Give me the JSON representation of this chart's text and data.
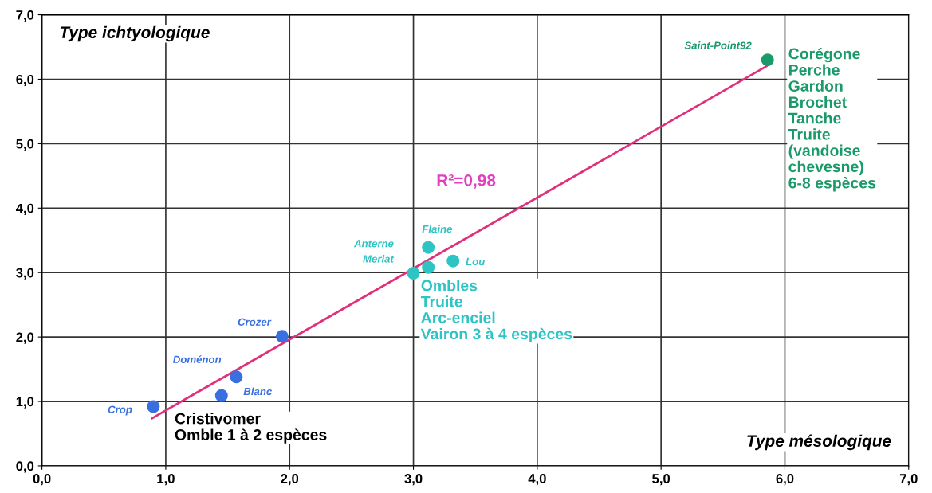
{
  "chart_data": {
    "type": "scatter",
    "xlabel": "Type mésologique",
    "ylabel": "Type ichtyologique",
    "xlim": [
      0,
      7
    ],
    "ylim": [
      0,
      7
    ],
    "xticks": [
      {
        "value": 0,
        "label": "0,0"
      },
      {
        "value": 1,
        "label": "1,0"
      },
      {
        "value": 2,
        "label": "2,0"
      },
      {
        "value": 3,
        "label": "3,0"
      },
      {
        "value": 4,
        "label": "4,0"
      },
      {
        "value": 5,
        "label": "5,0"
      },
      {
        "value": 6,
        "label": "6,0"
      },
      {
        "value": 7,
        "label": "7,0"
      }
    ],
    "yticks": [
      {
        "value": 0,
        "label": "0,0"
      },
      {
        "value": 1,
        "label": "1,0"
      },
      {
        "value": 2,
        "label": "2,0"
      },
      {
        "value": 3,
        "label": "3,0"
      },
      {
        "value": 4,
        "label": "4,0"
      },
      {
        "value": 5,
        "label": "5,0"
      },
      {
        "value": 6,
        "label": "6,0"
      },
      {
        "value": 7,
        "label": "7,0"
      }
    ],
    "grid": true,
    "series": [
      {
        "marker": "circle",
        "color": "#3a6fe0",
        "x": [
          0.9,
          1.45,
          1.57,
          1.94
        ],
        "values": [
          0.92,
          1.09,
          1.38,
          2.01
        ]
      },
      {
        "marker": "circle",
        "color": "#2ec4c4",
        "x": [
          3.0,
          3.12,
          3.12,
          3.32
        ],
        "values": [
          2.99,
          3.08,
          3.39,
          3.18
        ]
      },
      {
        "marker": "circle",
        "color": "#1a9a6a",
        "x": [
          5.86
        ],
        "values": [
          6.3
        ]
      },
      {
        "type": "line",
        "color": "#e0307a",
        "x": [
          0.89,
          5.85
        ],
        "values": [
          0.74,
          6.2
        ]
      }
    ],
    "annotations": [
      "Crop",
      "Blanc",
      "Doménon",
      "Crozer",
      "Anterne",
      "Merlat",
      "Flaine",
      "Lou",
      "Saint-Point92",
      "R²=0,98",
      "Cristivomer\nOmble 1 à 2 espèces",
      "Ombles\nTruite\nArc-enciel\nVairon 3 à 4 espèces",
      "Corégone\nPerche\nGardon\nBrochet\nTanche\nTruite\n(vandoise\nchevesne)\n6-8 espèces"
    ]
  }
}
